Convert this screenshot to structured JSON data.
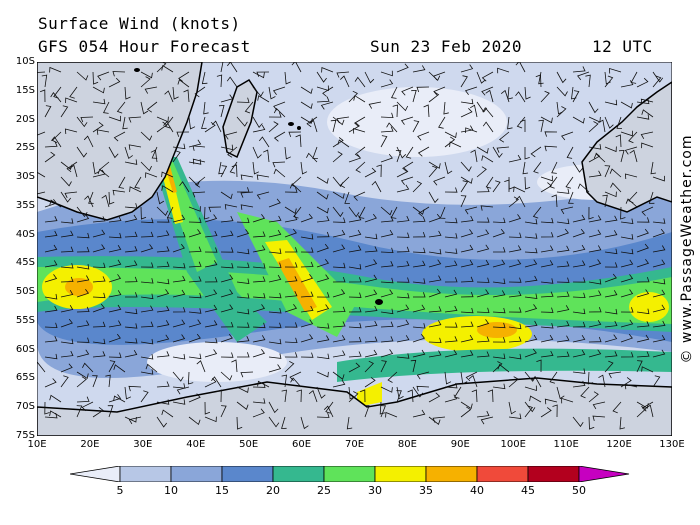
{
  "header": {
    "title": "Surface Wind (knots)",
    "forecast": "GFS 054 Hour Forecast",
    "date": "Sun 23 Feb 2020",
    "time": "12 UTC"
  },
  "credit": "© www.PassageWeather.com",
  "axes": {
    "lat_labels": [
      "10S",
      "15S",
      "20S",
      "25S",
      "30S",
      "35S",
      "40S",
      "45S",
      "50S",
      "55S",
      "60S",
      "65S",
      "70S",
      "75S"
    ],
    "lon_labels": [
      "10E",
      "20E",
      "30E",
      "40E",
      "50E",
      "60E",
      "70E",
      "80E",
      "90E",
      "100E",
      "110E",
      "120E",
      "130E"
    ],
    "lat_range": [
      -10,
      -75
    ],
    "lon_range": [
      10,
      130
    ]
  },
  "legend": {
    "labels": [
      "5",
      "10",
      "15",
      "20",
      "25",
      "30",
      "35",
      "40",
      "45",
      "50"
    ],
    "colors": [
      "#e9edf8",
      "#b7c7e6",
      "#8aa6d9",
      "#5a87cc",
      "#35b88f",
      "#5fe35a",
      "#f4f000",
      "#f6b100",
      "#f04a3a",
      "#b3001e",
      "#c600c0"
    ]
  },
  "map_colors": {
    "ocean_calm": "#dfe6f4",
    "land": "#d9dde6",
    "coast": "#000000"
  }
}
